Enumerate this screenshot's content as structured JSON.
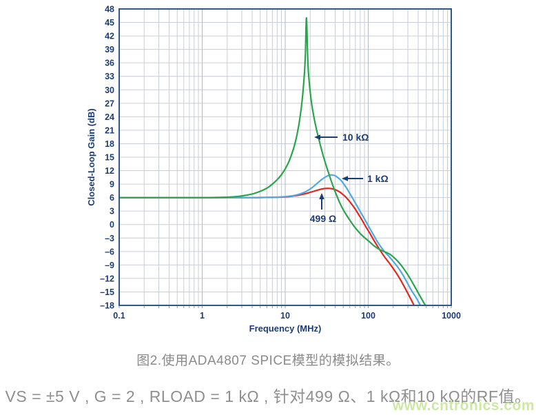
{
  "page": {
    "caption": "图2.使用ADA4807 SPICE模型的模拟结果。",
    "conditions_line": "VS = ±5 V , G = 2 , RLOAD = 1 kΩ , 针对499 Ω、1 kΩ和10 kΩ的RF值。",
    "watermark": "www.cntronics.com"
  },
  "chart_data": {
    "type": "line",
    "title": "",
    "xlabel": "Frequency (MHz)",
    "ylabel": "Closed-Loop Gain (dB)",
    "x_scale": "log",
    "xlim": [
      0.1,
      1000
    ],
    "ylim": [
      -18,
      48
    ],
    "y_tick_step": 3,
    "yticks": [
      48,
      45,
      42,
      39,
      36,
      33,
      30,
      27,
      24,
      21,
      18,
      15,
      12,
      9,
      6,
      3,
      0,
      -3,
      -6,
      -9,
      -12,
      -15,
      -18
    ],
    "xtick_values": [
      0.1,
      1,
      10,
      100,
      1000
    ],
    "xtick_labels": [
      "0.1",
      "1",
      "10",
      "100",
      "1000"
    ],
    "grid": true,
    "legend_position": "annotations-on-plot",
    "colors": {
      "axis_text": "#1b3c74",
      "frame": "#2e5a8a",
      "grid_minor": "#c9cdd5",
      "grid_major": "#b3b9c6",
      "tick_stub": "#8e99a8",
      "green_10k": "#29a54b",
      "blue_1k": "#4fa8e8",
      "red_499": "#e6251c"
    },
    "series": [
      {
        "name": "499 Ω",
        "color_key": "red_499",
        "points": [
          [
            0.1,
            6
          ],
          [
            0.5,
            6
          ],
          [
            1,
            6
          ],
          [
            2,
            6
          ],
          [
            4,
            6
          ],
          [
            6,
            6.03
          ],
          [
            8,
            6.08
          ],
          [
            10,
            6.15
          ],
          [
            12,
            6.3
          ],
          [
            14,
            6.5
          ],
          [
            16,
            6.7
          ],
          [
            19,
            7.05
          ],
          [
            22,
            7.4
          ],
          [
            25,
            7.7
          ],
          [
            28,
            7.95
          ],
          [
            31,
            8.05
          ],
          [
            34,
            8.05
          ],
          [
            37,
            7.95
          ],
          [
            40,
            7.75
          ],
          [
            44,
            7.4
          ],
          [
            48,
            6.9
          ],
          [
            53,
            6.2
          ],
          [
            58,
            5.4
          ],
          [
            64,
            4.4
          ],
          [
            70,
            3.4
          ],
          [
            78,
            2.0
          ],
          [
            86,
            0.7
          ],
          [
            95,
            -0.7
          ],
          [
            105,
            -2.0
          ],
          [
            116,
            -3.4
          ],
          [
            128,
            -4.7
          ],
          [
            142,
            -6.0
          ],
          [
            160,
            -7.4
          ],
          [
            178,
            -8.5
          ],
          [
            200,
            -9.8
          ],
          [
            225,
            -11.2
          ],
          [
            255,
            -12.9
          ],
          [
            290,
            -14.8
          ],
          [
            330,
            -16.8
          ],
          [
            370,
            -18.6
          ]
        ]
      },
      {
        "name": "1 kΩ",
        "color_key": "blue_1k",
        "points": [
          [
            0.1,
            6
          ],
          [
            0.5,
            6
          ],
          [
            1,
            6
          ],
          [
            2,
            6
          ],
          [
            3,
            6
          ],
          [
            5,
            6.02
          ],
          [
            7,
            6.08
          ],
          [
            9,
            6.15
          ],
          [
            11,
            6.3
          ],
          [
            13,
            6.5
          ],
          [
            15,
            6.8
          ],
          [
            18,
            7.4
          ],
          [
            21,
            8.2
          ],
          [
            24,
            9.1
          ],
          [
            27,
            9.9
          ],
          [
            30,
            10.5
          ],
          [
            33,
            10.9
          ],
          [
            36,
            11.05
          ],
          [
            39,
            10.95
          ],
          [
            42,
            10.6
          ],
          [
            46,
            10.0
          ],
          [
            50,
            9.2
          ],
          [
            55,
            8.1
          ],
          [
            60,
            6.9
          ],
          [
            66,
            5.6
          ],
          [
            72,
            4.4
          ],
          [
            80,
            2.9
          ],
          [
            88,
            1.6
          ],
          [
            97,
            0.2
          ],
          [
            107,
            -1.2
          ],
          [
            118,
            -2.6
          ],
          [
            130,
            -3.9
          ],
          [
            145,
            -5.2
          ],
          [
            160,
            -6.2
          ],
          [
            178,
            -7.1
          ],
          [
            200,
            -8.2
          ],
          [
            225,
            -9.4
          ],
          [
            255,
            -10.9
          ],
          [
            290,
            -12.7
          ],
          [
            330,
            -14.6
          ],
          [
            375,
            -16.2
          ],
          [
            420,
            -17.8
          ],
          [
            455,
            -18.8
          ]
        ]
      },
      {
        "name": "10 kΩ",
        "color_key": "green_10k",
        "points": [
          [
            0.1,
            6
          ],
          [
            0.3,
            6
          ],
          [
            0.6,
            6
          ],
          [
            1,
            6
          ],
          [
            1.4,
            6.02
          ],
          [
            2,
            6.1
          ],
          [
            2.8,
            6.3
          ],
          [
            4,
            6.8
          ],
          [
            5,
            7.4
          ],
          [
            6,
            8.1
          ],
          [
            7,
            9.0
          ],
          [
            8,
            10.0
          ],
          [
            9,
            11.1
          ],
          [
            10,
            12.4
          ],
          [
            11,
            13.9
          ],
          [
            12,
            15.7
          ],
          [
            13,
            17.8
          ],
          [
            14,
            20.4
          ],
          [
            15,
            23.6
          ],
          [
            16,
            27.7
          ],
          [
            17,
            33.5
          ],
          [
            17.5,
            38
          ],
          [
            18,
            46
          ],
          [
            18.6,
            38
          ],
          [
            19,
            34
          ],
          [
            20,
            29.5
          ],
          [
            21,
            26.4
          ],
          [
            22.5,
            23.3
          ],
          [
            24,
            20.9
          ],
          [
            26,
            18.3
          ],
          [
            28,
            16.0
          ],
          [
            30,
            14.1
          ],
          [
            33,
            11.7
          ],
          [
            36,
            9.6
          ],
          [
            40,
            7.3
          ],
          [
            45,
            5.0
          ],
          [
            50,
            3.3
          ],
          [
            56,
            1.8
          ],
          [
            63,
            0.4
          ],
          [
            71,
            -0.9
          ],
          [
            80,
            -2.0
          ],
          [
            90,
            -2.9
          ],
          [
            100,
            -3.6
          ],
          [
            115,
            -4.6
          ],
          [
            130,
            -5.3
          ],
          [
            150,
            -5.9
          ],
          [
            178,
            -6.5
          ],
          [
            200,
            -7.2
          ],
          [
            230,
            -8.3
          ],
          [
            260,
            -9.5
          ],
          [
            300,
            -11.2
          ],
          [
            350,
            -13.3
          ],
          [
            400,
            -15.2
          ],
          [
            460,
            -17.2
          ],
          [
            510,
            -18.6
          ]
        ]
      }
    ],
    "annotations": [
      {
        "label": "10 kΩ",
        "target_series": "10 kΩ",
        "arrow": "left"
      },
      {
        "label": "1 kΩ",
        "target_series": "1 kΩ",
        "arrow": "left"
      },
      {
        "label": "499 Ω",
        "target_series": "499 Ω",
        "arrow": "up"
      }
    ]
  }
}
